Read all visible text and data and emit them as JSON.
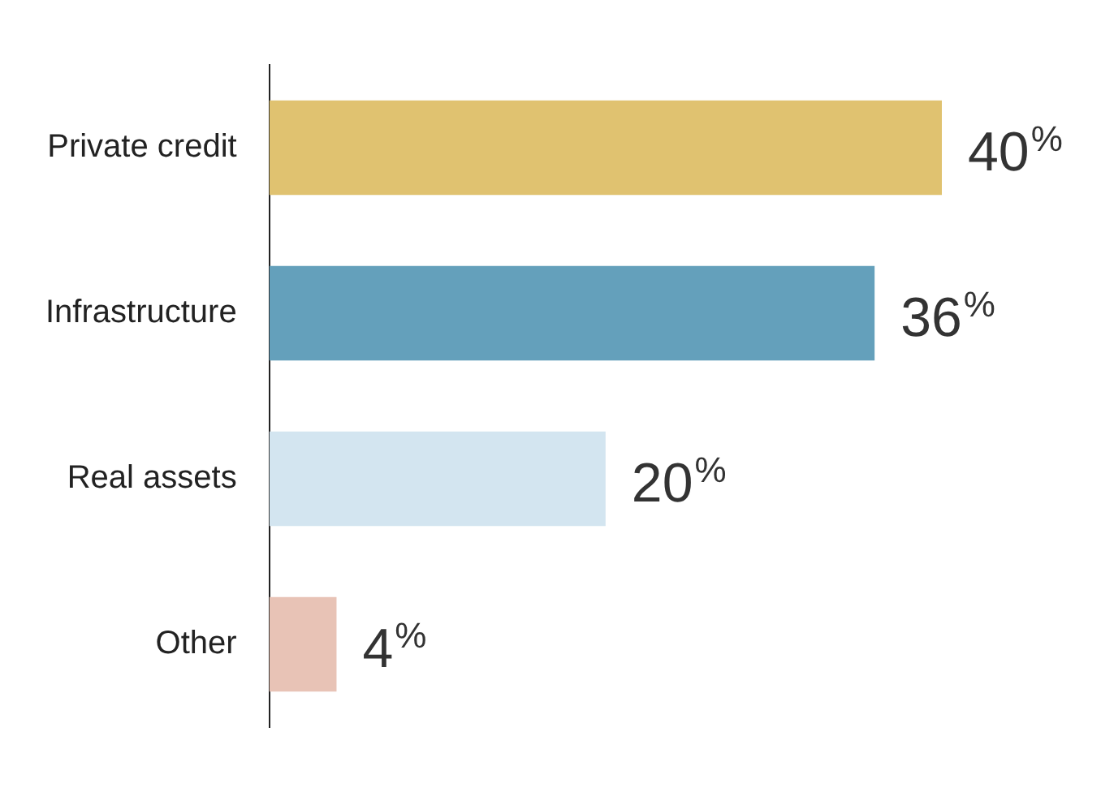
{
  "chart_data": {
    "type": "bar",
    "orientation": "horizontal",
    "categories": [
      "Private credit",
      "Infrastructure",
      "Real assets",
      "Other"
    ],
    "values": [
      40,
      36,
      20,
      4
    ],
    "colors": [
      "#e0c270",
      "#64a0bb",
      "#d3e5f0",
      "#e8c3b6"
    ],
    "value_labels": [
      "40%",
      "36%",
      "20%",
      "4%"
    ],
    "legend": false
  }
}
